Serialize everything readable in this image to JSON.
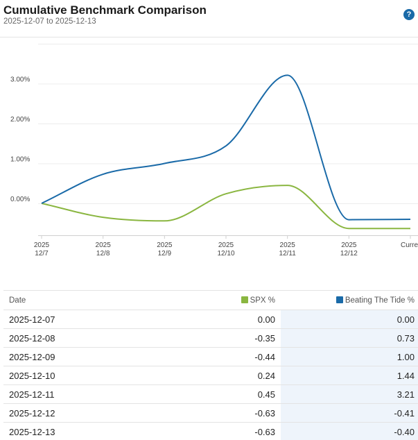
{
  "header": {
    "title": "Cumulative Benchmark Comparison",
    "subtitle": "2025-12-07 to 2025-12-13",
    "help_label": "?"
  },
  "colors": {
    "spx": "#8ab640",
    "btt": "#1a6aa8"
  },
  "chart_data": {
    "type": "line",
    "x_ticks": [
      {
        "line1": "2025",
        "line2": "12/7"
      },
      {
        "line1": "2025",
        "line2": "12/8"
      },
      {
        "line1": "2025",
        "line2": "12/9"
      },
      {
        "line1": "2025",
        "line2": "12/10"
      },
      {
        "line1": "2025",
        "line2": "12/11"
      },
      {
        "line1": "2025",
        "line2": "12/12"
      },
      {
        "line1": "Curre",
        "line2": ""
      }
    ],
    "y_ticks": [
      {
        "value": 0,
        "label": "0.00%"
      },
      {
        "value": 1,
        "label": "1.00%"
      },
      {
        "value": 2,
        "label": "2.00%"
      },
      {
        "value": 3,
        "label": "3.00%"
      }
    ],
    "ylim": [
      -0.8,
      4.0
    ],
    "series": [
      {
        "name": "SPX %",
        "values": [
          0.0,
          -0.35,
          -0.44,
          0.24,
          0.45,
          -0.63,
          -0.63
        ]
      },
      {
        "name": "Beating The Tide %",
        "values": [
          0.0,
          0.73,
          1.0,
          1.44,
          3.21,
          -0.41,
          -0.4
        ]
      }
    ]
  },
  "table": {
    "headers": {
      "date": "Date",
      "spx": "SPX %",
      "btt": "Beating The Tide %"
    },
    "rows": [
      {
        "date": "2025-12-07",
        "spx": "0.00",
        "btt": "0.00"
      },
      {
        "date": "2025-12-08",
        "spx": "-0.35",
        "btt": "0.73"
      },
      {
        "date": "2025-12-09",
        "spx": "-0.44",
        "btt": "1.00"
      },
      {
        "date": "2025-12-10",
        "spx": "0.24",
        "btt": "1.44"
      },
      {
        "date": "2025-12-11",
        "spx": "0.45",
        "btt": "3.21"
      },
      {
        "date": "2025-12-12",
        "spx": "-0.63",
        "btt": "-0.41"
      },
      {
        "date": "2025-12-13",
        "spx": "-0.63",
        "btt": "-0.40"
      }
    ]
  }
}
